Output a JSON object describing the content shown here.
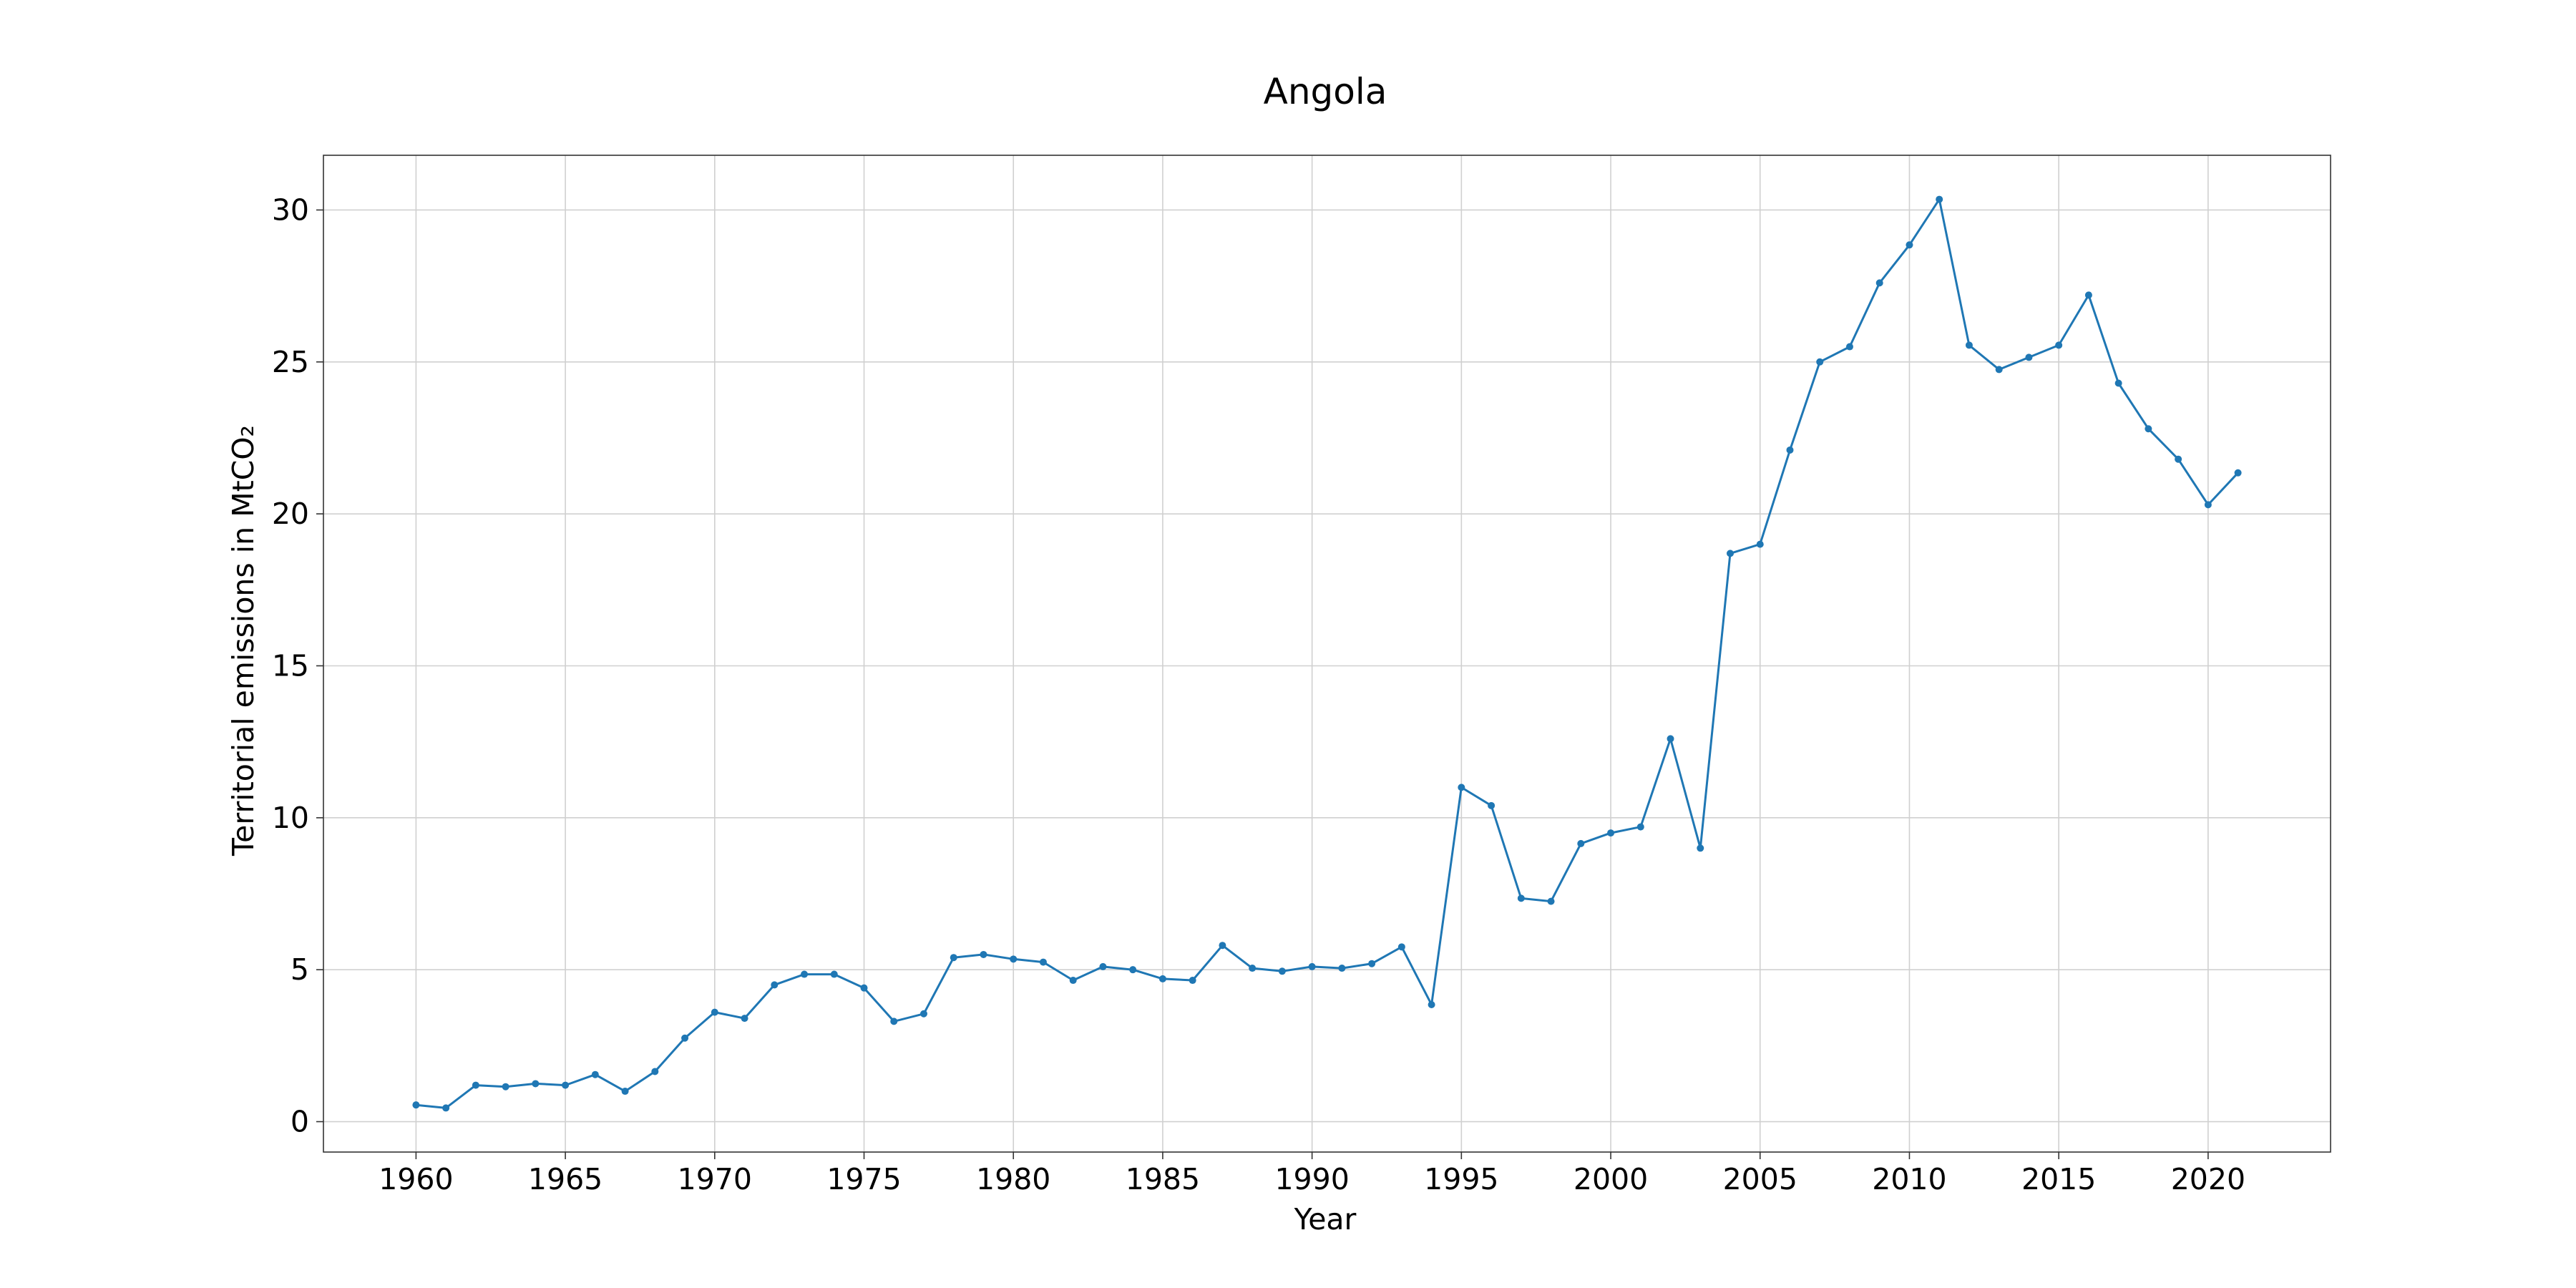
{
  "chart_data": {
    "type": "line",
    "title": "Angola",
    "xlabel": "Year",
    "ylabel": "Territorial emissions in MtCO₂",
    "xlim": [
      1956.9,
      2024.1
    ],
    "ylim": [
      -1.0,
      31.8
    ],
    "x_ticks": [
      1960,
      1965,
      1970,
      1975,
      1980,
      1985,
      1990,
      1995,
      2000,
      2005,
      2010,
      2015,
      2020
    ],
    "y_ticks": [
      0,
      5,
      10,
      15,
      20,
      25,
      30
    ],
    "grid": true,
    "legend": "none",
    "line_color": "#1f77b4",
    "series": [
      {
        "x": [
          1960,
          1961,
          1962,
          1963,
          1964,
          1965,
          1966,
          1967,
          1968,
          1969,
          1970,
          1971,
          1972,
          1973,
          1974,
          1975,
          1976,
          1977,
          1978,
          1979,
          1980,
          1981,
          1982,
          1983,
          1984,
          1985,
          1986,
          1987,
          1988,
          1989,
          1990,
          1991,
          1992,
          1993,
          1994,
          1995,
          1996,
          1997,
          1998,
          1999,
          2000,
          2001,
          2002,
          2003,
          2004,
          2005,
          2006,
          2007,
          2008,
          2009,
          2010,
          2011,
          2012,
          2013,
          2014,
          2015,
          2016,
          2017,
          2018,
          2019,
          2020,
          2021
        ],
        "values": [
          0.55,
          0.45,
          1.2,
          1.15,
          1.25,
          1.2,
          1.55,
          1.0,
          1.65,
          2.75,
          3.6,
          3.4,
          4.5,
          4.85,
          4.85,
          4.4,
          3.3,
          3.55,
          5.4,
          5.5,
          5.35,
          5.25,
          4.65,
          5.1,
          5.0,
          4.7,
          4.65,
          5.8,
          5.05,
          4.95,
          5.1,
          5.05,
          5.2,
          5.75,
          3.85,
          11.0,
          10.4,
          7.35,
          7.25,
          9.15,
          9.5,
          9.7,
          12.6,
          9.0,
          18.7,
          19.0,
          22.1,
          25.0,
          25.5,
          27.6,
          28.85,
          30.35,
          25.55,
          24.75,
          25.15,
          25.55,
          27.2,
          24.3,
          22.8,
          21.8,
          20.3,
          21.35
        ]
      }
    ]
  }
}
